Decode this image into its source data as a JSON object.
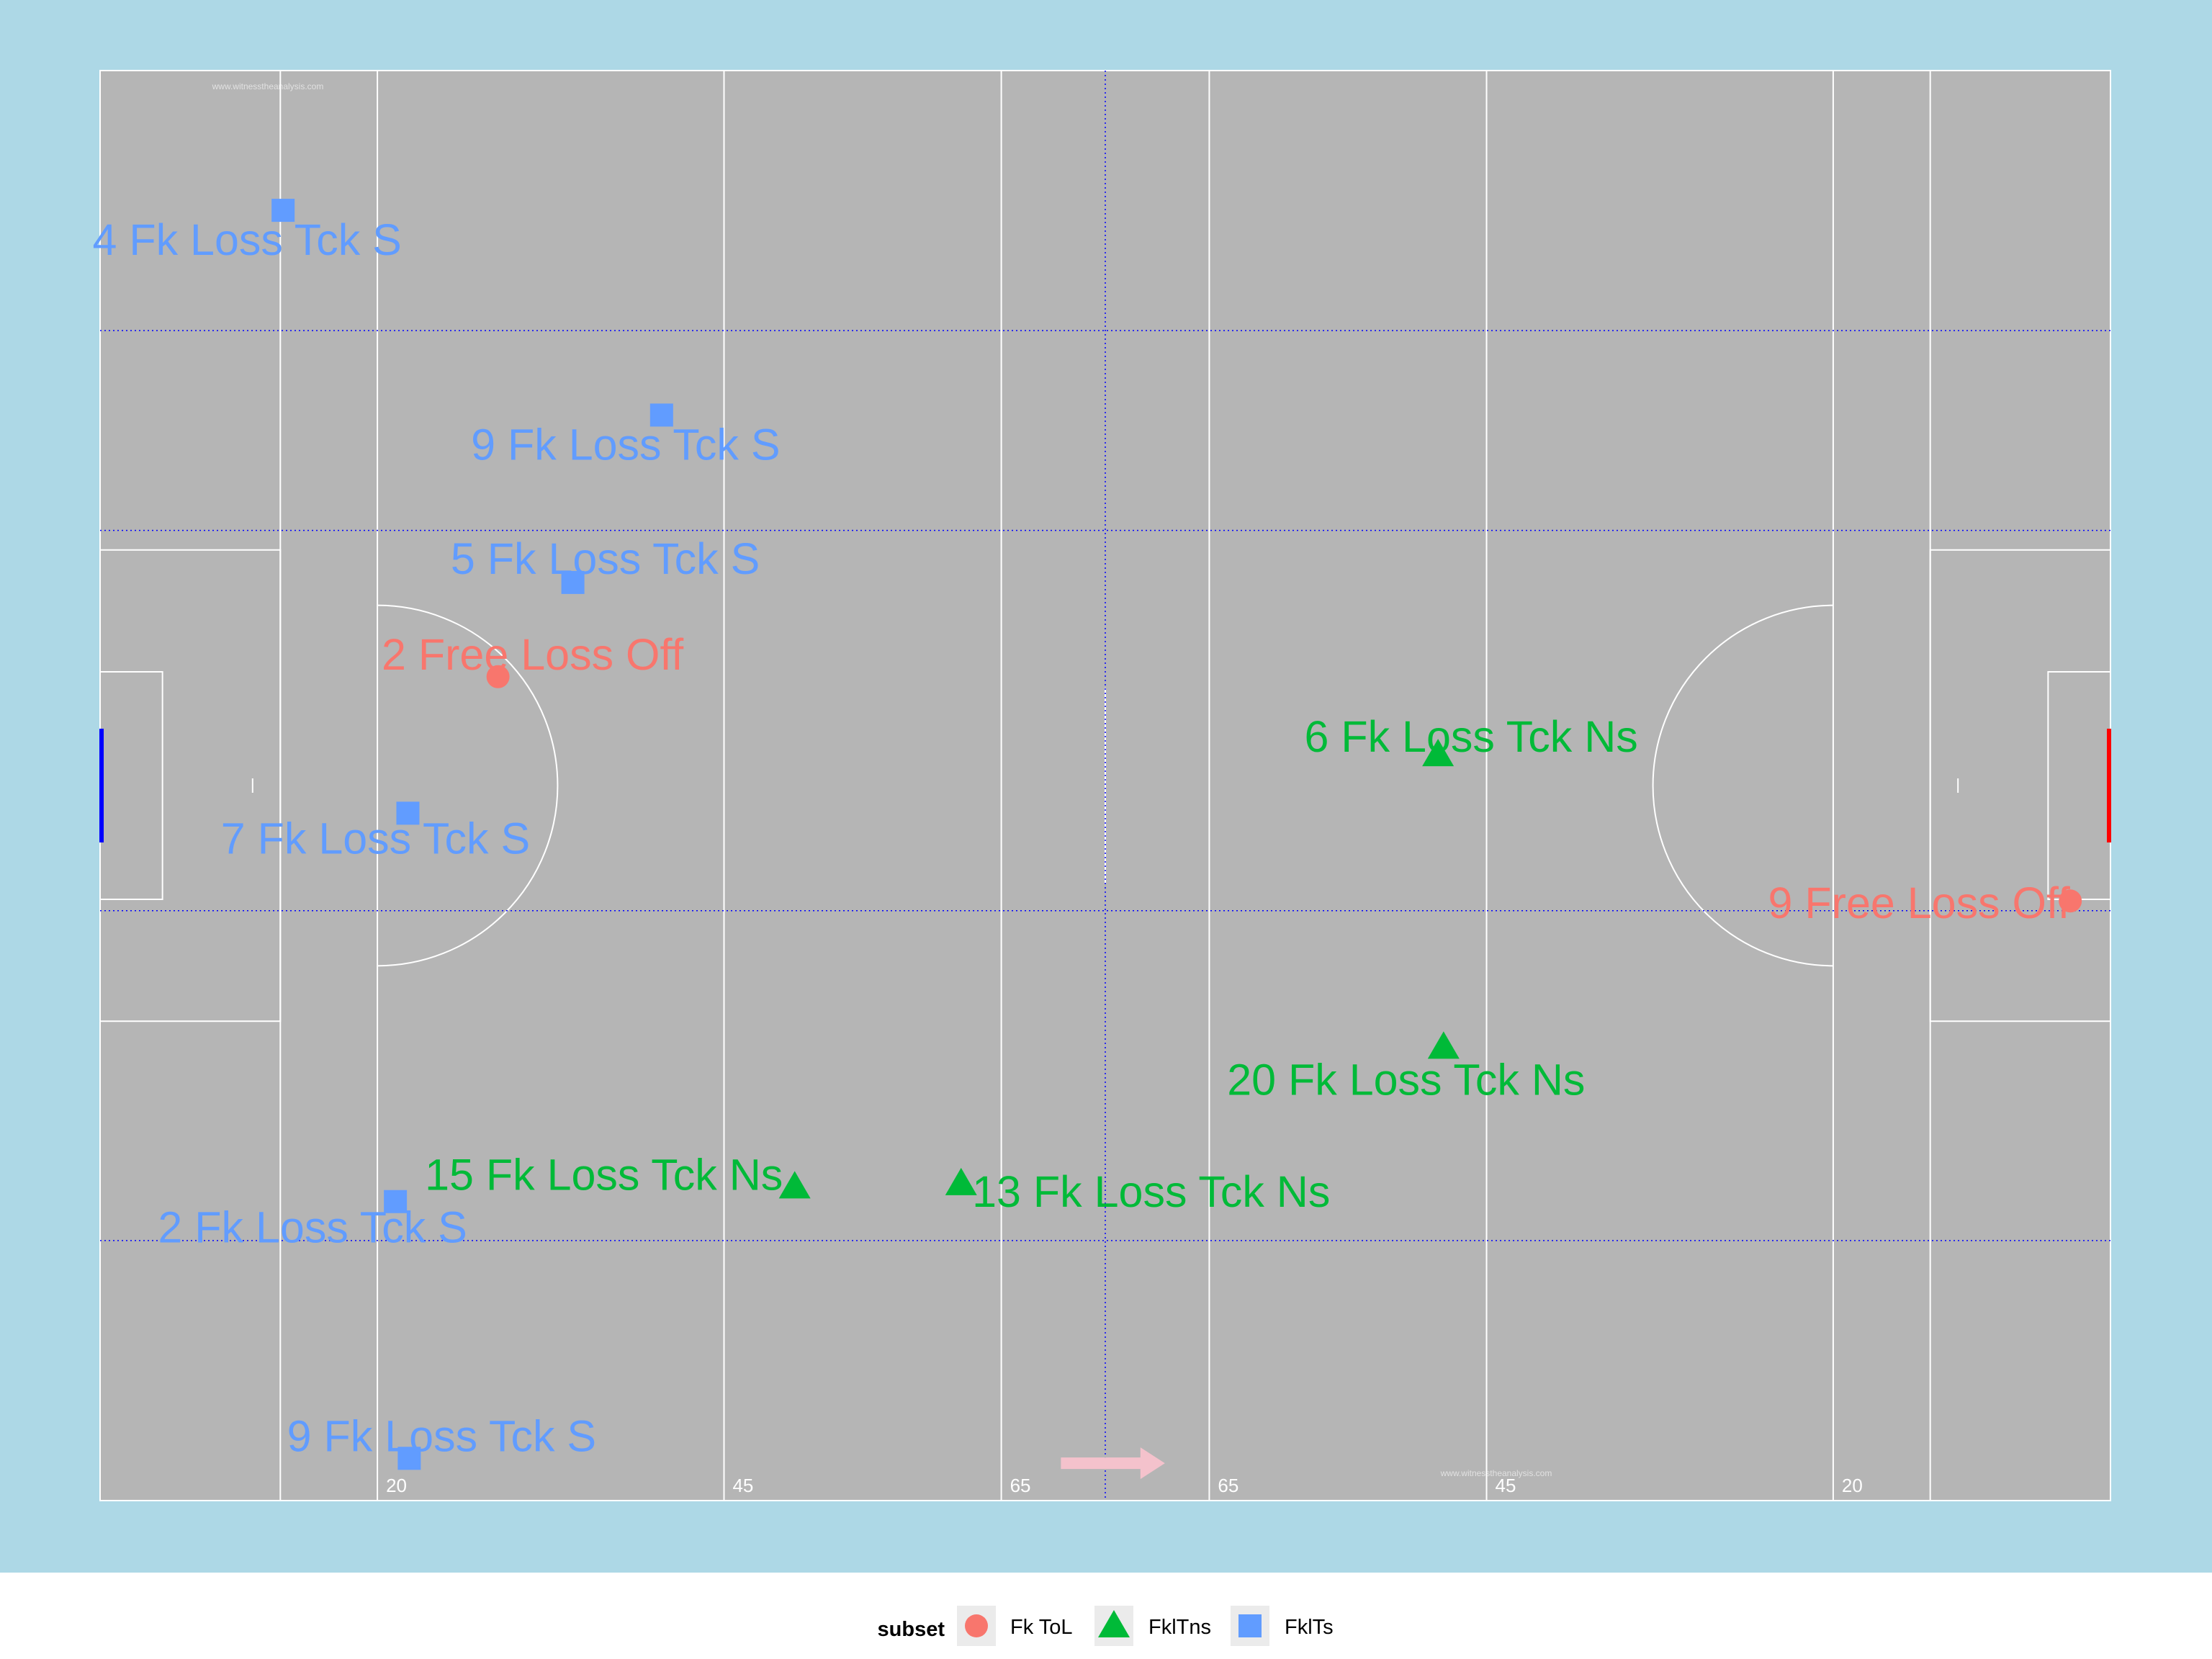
{
  "colors": {
    "panel": "#add8e6",
    "pitch": "#b5b5b5",
    "pitch_lines": "#ffffff",
    "zone_lines": "#0000ff",
    "left_goal": "#0000ff",
    "right_goal": "#ff0000",
    "direction_arrow": "#f4c2cc",
    "legend_bg": "#ffffff"
  },
  "watermark": "www.witnesstheanalysis.com",
  "chart_data": {
    "type": "scatter",
    "title": "",
    "xlabel": "",
    "ylabel": "",
    "xlim": [
      0,
      145
    ],
    "ylim": [
      0,
      88
    ],
    "grid": false,
    "legend_position": "bottom",
    "pitch_markings": {
      "line_distance_labels": [
        {
          "x": 20,
          "label": "20"
        },
        {
          "x": 45,
          "label": "45"
        },
        {
          "x": 65,
          "label": "65"
        },
        {
          "x": 80,
          "label": "65"
        },
        {
          "x": 100,
          "label": "45"
        },
        {
          "x": 125,
          "label": "20"
        }
      ],
      "pitch_lines_x": [
        13,
        20,
        45,
        65,
        80,
        100,
        125,
        132
      ],
      "zone_lines_x": [
        72.5
      ],
      "zone_lines_y": [
        16,
        36.3,
        59.7,
        72
      ],
      "attack_direction": "right"
    },
    "legend": {
      "title": "subset",
      "entries": [
        {
          "name": "Fk ToL",
          "shape": "circle",
          "color": "#f8766d"
        },
        {
          "name": "FklTns",
          "shape": "triangle",
          "color": "#00ba38"
        },
        {
          "name": "FklTs",
          "shape": "square",
          "color": "#619cff"
        }
      ]
    },
    "series": [
      {
        "name": "Fk ToL",
        "shape": "circle",
        "color": "#f8766d",
        "points": [
          {
            "x": 28.7,
            "y": 50.7,
            "label": "2 Free Loss Off"
          },
          {
            "x": 142.1,
            "y": 36.9,
            "label": "9 Free Loss Off"
          }
        ]
      },
      {
        "name": "FklTns",
        "shape": "triangle",
        "color": "#00ba38",
        "points": [
          {
            "x": 96.5,
            "y": 45.9,
            "label": "6 Fk Loss Tck Ns"
          },
          {
            "x": 96.9,
            "y": 27.9,
            "label": "20 Fk Loss Tck Ns"
          },
          {
            "x": 50.1,
            "y": 19.3,
            "label": "15 Fk Loss Tck Ns"
          },
          {
            "x": 62.1,
            "y": 19.5,
            "label": "13 Fk Loss Tck Ns"
          }
        ]
      },
      {
        "name": "FklTs",
        "shape": "square",
        "color": "#619cff",
        "points": [
          {
            "x": 13.2,
            "y": 79.4,
            "label": "4 Fk Loss Tck S"
          },
          {
            "x": 40.5,
            "y": 66.8,
            "label": "9 Fk Loss Tck S"
          },
          {
            "x": 34.1,
            "y": 56.5,
            "label": "5 Fk Loss Tck S"
          },
          {
            "x": 22.2,
            "y": 42.3,
            "label": "7 Fk Loss Tck S"
          },
          {
            "x": 21.3,
            "y": 18.4,
            "label": "2 Fk Loss Tck S"
          },
          {
            "x": 22.3,
            "y": 2.6,
            "label": "9 Fk Loss Tck S"
          }
        ]
      }
    ]
  }
}
